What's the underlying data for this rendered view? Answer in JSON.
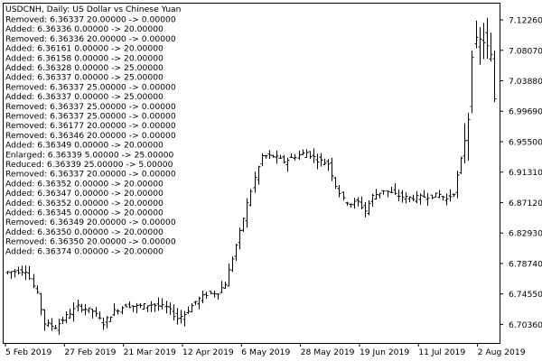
{
  "window": {
    "title": "USDCNH, Daily:  US Dollar vs Chinese Yuan"
  },
  "log": [
    "Removed: 6.36337 20.00000 -> 0.00000",
    "Added: 6.36336 0.00000 -> 20.00000",
    "Removed: 6.36336 20.00000 -> 0.00000",
    "Added: 6.36161 0.00000 -> 20.00000",
    "Added: 6.36158 0.00000 -> 20.00000",
    "Added: 6.36328 0.00000 -> 25.00000",
    "Added: 6.36337 0.00000 -> 25.00000",
    "Removed: 6.36337 25.00000 -> 0.00000",
    "Added: 6.36337 0.00000 -> 25.00000",
    "Removed: 6.36337 25.00000 -> 0.00000",
    "Removed: 6.36337 25.00000 -> 0.00000",
    "Removed: 6.36177 20.00000 -> 0.00000",
    "Removed: 6.36346 20.00000 -> 0.00000",
    "Added: 6.36349 0.00000 -> 20.00000",
    "Enlarged: 6.36339 5.00000 -> 25.00000",
    "Reduced: 6.36339 25.00000 -> 5.00000",
    "Removed: 6.36337 20.00000 -> 0.00000",
    "Added: 6.36352 0.00000 -> 20.00000",
    "Added: 6.36347 0.00000 -> 20.00000",
    "Added: 6.36352 0.00000 -> 20.00000",
    "Added: 6.36345 0.00000 -> 20.00000",
    "Removed: 6.36349 20.00000 -> 0.00000",
    "Added: 6.36350 0.00000 -> 20.00000",
    "Removed: 6.36350 20.00000 -> 0.00000",
    "Added: 6.36374 0.00000 -> 20.00000"
  ],
  "colors": {
    "background": "#ffffff",
    "bars": "#000000",
    "frame": "#000000"
  },
  "chart_data": {
    "type": "ohlc",
    "symbol": "USDCNH",
    "timeframe": "Daily",
    "y_ticks": [
      "7.12260",
      "7.08070",
      "7.03880",
      "6.99690",
      "6.95500",
      "6.91310",
      "6.87120",
      "6.82930",
      "6.78740",
      "6.74550",
      "6.70360"
    ],
    "ylim": [
      6.678,
      7.145
    ],
    "x_ticks": [
      "5 Feb 2019",
      "27 Feb 2019",
      "21 Mar 2019",
      "12 Apr 2019",
      "6 May 2019",
      "28 May 2019",
      "19 Jun 2019",
      "11 Jul 2019",
      "2 Aug 2019"
    ],
    "start_date": "5 Feb 2019",
    "trading_days": 133,
    "price_path": [
      [
        0,
        6.775
      ],
      [
        6,
        6.778
      ],
      [
        9,
        6.745
      ],
      [
        11,
        6.705
      ],
      [
        14,
        6.7
      ],
      [
        17,
        6.715
      ],
      [
        20,
        6.728
      ],
      [
        24,
        6.722
      ],
      [
        27,
        6.705
      ],
      [
        30,
        6.722
      ],
      [
        33,
        6.73
      ],
      [
        36,
        6.728
      ],
      [
        40,
        6.731
      ],
      [
        44,
        6.727
      ],
      [
        47,
        6.712
      ],
      [
        49,
        6.718
      ],
      [
        52,
        6.735
      ],
      [
        55,
        6.745
      ],
      [
        58,
        6.748
      ],
      [
        60,
        6.76
      ],
      [
        62,
        6.795
      ],
      [
        64,
        6.83
      ],
      [
        66,
        6.87
      ],
      [
        68,
        6.905
      ],
      [
        70,
        6.935
      ],
      [
        73,
        6.935
      ],
      [
        76,
        6.928
      ],
      [
        79,
        6.935
      ],
      [
        82,
        6.94
      ],
      [
        85,
        6.93
      ],
      [
        88,
        6.925
      ],
      [
        90,
        6.895
      ],
      [
        92,
        6.875
      ],
      [
        94,
        6.87
      ],
      [
        96,
        6.872
      ],
      [
        98,
        6.86
      ],
      [
        100,
        6.88
      ],
      [
        103,
        6.888
      ],
      [
        106,
        6.882
      ],
      [
        109,
        6.878
      ],
      [
        112,
        6.878
      ],
      [
        115,
        6.88
      ],
      [
        118,
        6.882
      ],
      [
        120,
        6.876
      ],
      [
        122,
        6.885
      ],
      [
        124,
        6.93
      ],
      [
        126,
        6.99
      ],
      [
        127,
        7.08
      ],
      [
        128,
        7.09
      ],
      [
        130,
        7.095
      ],
      [
        132,
        7.07
      ],
      [
        133,
        7.015
      ]
    ]
  }
}
